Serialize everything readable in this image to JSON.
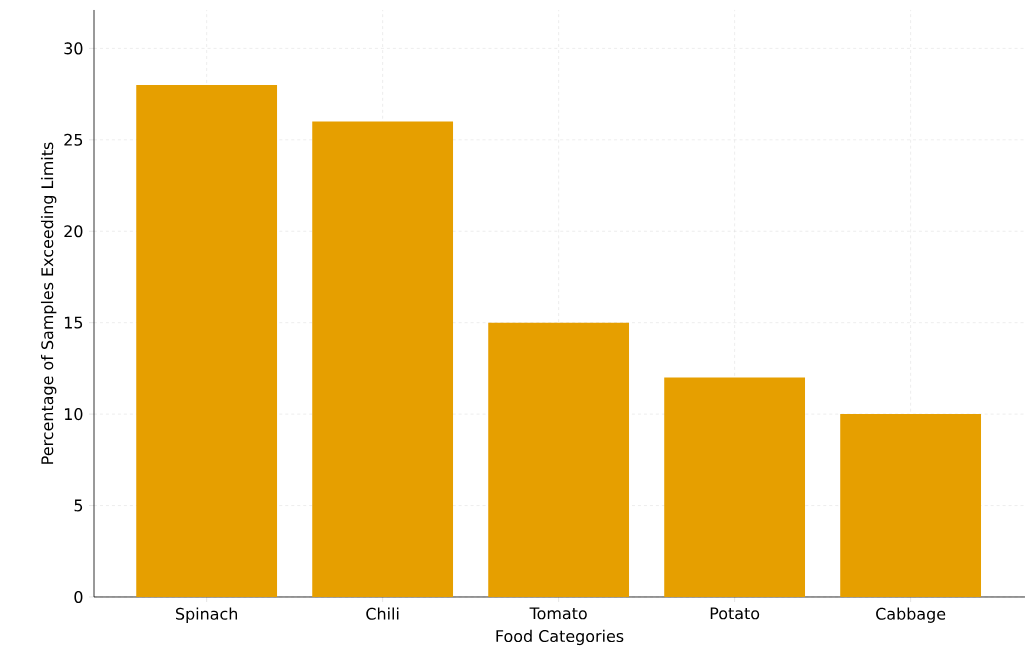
{
  "chart_data": {
    "type": "bar",
    "xlabel": "Food Categories",
    "ylabel": "Percentage of Samples Exceeding Limits",
    "categories": [
      "Spinach",
      "Chili",
      "Tomato",
      "Potato",
      "Cabbage"
    ],
    "values": [
      28,
      26,
      15,
      12,
      10
    ],
    "color": "#e69f00",
    "ylim": [
      0,
      32.1
    ],
    "yticks": [
      0,
      5,
      10,
      15,
      20,
      25,
      30
    ],
    "grid": true
  }
}
